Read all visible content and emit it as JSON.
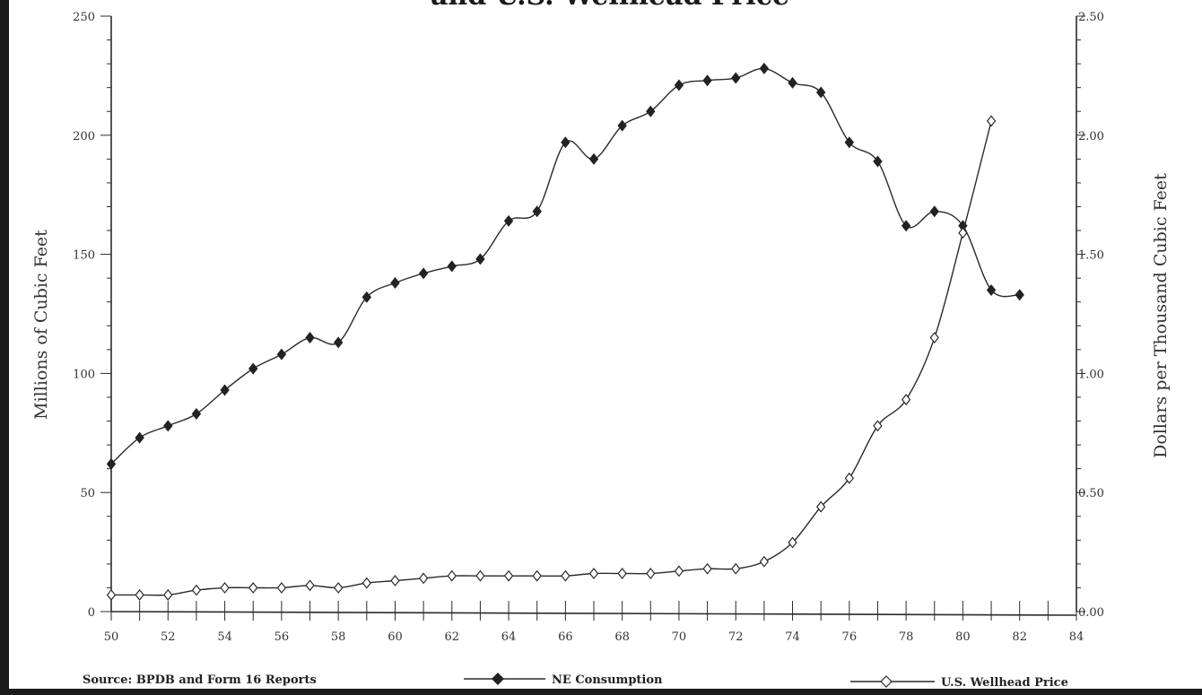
{
  "chart_data": {
    "type": "line",
    "title": "and U.S. Wellhead Price",
    "ylabel_left": "Millions of Cubic Feet",
    "ylabel_right": "Dollars per Thousand Cubic Feet",
    "xlabel": "",
    "xlim": [
      50,
      84
    ],
    "ylim_left": [
      0,
      250
    ],
    "ylim_right": [
      0,
      2.5
    ],
    "x_ticks": [
      "50",
      "52",
      "54",
      "56",
      "58",
      "60",
      "62",
      "64",
      "66",
      "68",
      "70",
      "72",
      "74",
      "76",
      "78",
      "80",
      "82",
      "84"
    ],
    "y_left_ticks": [
      "0",
      "50",
      "100",
      "150",
      "200",
      "250"
    ],
    "y_right_ticks": [
      "0.00",
      "0.50",
      "1.00",
      "1.50",
      "2.00",
      "2.50"
    ],
    "grid": false,
    "legend_position": "bottom",
    "series": [
      {
        "name": "NE Consumption",
        "axis": "left",
        "marker": "filled-diamond",
        "x": [
          50,
          51,
          52,
          53,
          54,
          55,
          56,
          57,
          58,
          59,
          60,
          61,
          62,
          63,
          64,
          65,
          66,
          67,
          68,
          69,
          70,
          71,
          72,
          73,
          74,
          75,
          76,
          77,
          78,
          79,
          80,
          81,
          82
        ],
        "values": [
          62,
          73,
          78,
          83,
          93,
          102,
          108,
          115,
          113,
          132,
          138,
          142,
          145,
          148,
          164,
          168,
          197,
          190,
          204,
          210,
          221,
          223,
          224,
          228,
          222,
          218,
          197,
          189,
          162,
          168,
          162,
          135,
          133
        ]
      },
      {
        "name": "U.S. Wellhead Price",
        "axis": "right",
        "marker": "open-diamond",
        "x": [
          50,
          51,
          52,
          53,
          54,
          55,
          56,
          57,
          58,
          59,
          60,
          61,
          62,
          63,
          64,
          65,
          66,
          67,
          68,
          69,
          70,
          71,
          72,
          73,
          74,
          75,
          76,
          77,
          78,
          79,
          80,
          81
        ],
        "values": [
          0.07,
          0.07,
          0.07,
          0.09,
          0.1,
          0.1,
          0.1,
          0.11,
          0.1,
          0.12,
          0.13,
          0.14,
          0.15,
          0.15,
          0.15,
          0.15,
          0.15,
          0.16,
          0.16,
          0.16,
          0.17,
          0.18,
          0.18,
          0.21,
          0.29,
          0.44,
          0.56,
          0.78,
          0.89,
          1.15,
          1.59,
          2.06
        ]
      }
    ]
  },
  "footer": {
    "source": "Source: BPDB and Form 16 Reports",
    "legend_ne": "NE Consumption",
    "legend_price": "U.S. Wellhead Price"
  },
  "colors": {
    "line": "#2a2a2a",
    "marker_fill": "#222222",
    "background": "#ffffff"
  }
}
